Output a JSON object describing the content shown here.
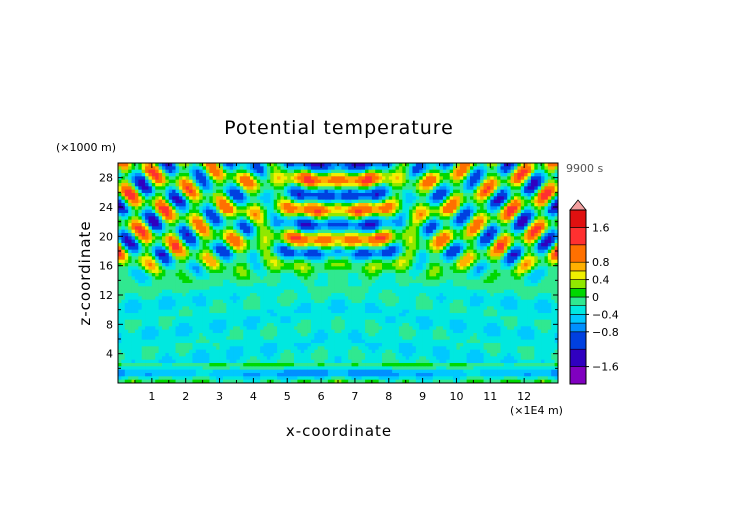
{
  "chart_data": {
    "type": "heatmap",
    "title": "Potential temperature",
    "xlabel": "x-coordinate",
    "ylabel": "z-coordinate",
    "x_unit": "(×1E4 m)",
    "y_unit": "(×1000 m)",
    "time_label": "9900 s",
    "xlim": [
      0,
      13
    ],
    "ylim": [
      0,
      30
    ],
    "x_ticks": [
      1,
      2,
      3,
      4,
      5,
      6,
      7,
      8,
      9,
      10,
      11,
      12
    ],
    "y_ticks": [
      4,
      8,
      12,
      16,
      20,
      24,
      28
    ],
    "colorbar": {
      "labels": [
        "1.6",
        "0.8",
        "0.4",
        "0",
        "−0.4",
        "−0.8",
        "−1.6"
      ],
      "label_values": [
        1.6,
        0.8,
        0.4,
        0,
        -0.4,
        -0.8,
        -1.6
      ],
      "levels": [
        -2.0,
        -1.6,
        -1.2,
        -0.8,
        -0.6,
        -0.4,
        -0.2,
        0,
        0.2,
        0.4,
        0.6,
        0.8,
        1.2,
        1.6,
        2.0
      ],
      "colors": [
        "#8000c0",
        "#3000c0",
        "#0040e0",
        "#0090ff",
        "#00c8ff",
        "#00e8e0",
        "#30e890",
        "#00d800",
        "#90e800",
        "#f0f000",
        "#ffb000",
        "#ff7000",
        "#ff3030",
        "#e01010"
      ],
      "extend_max_color": "#f4a0a0"
    }
  }
}
